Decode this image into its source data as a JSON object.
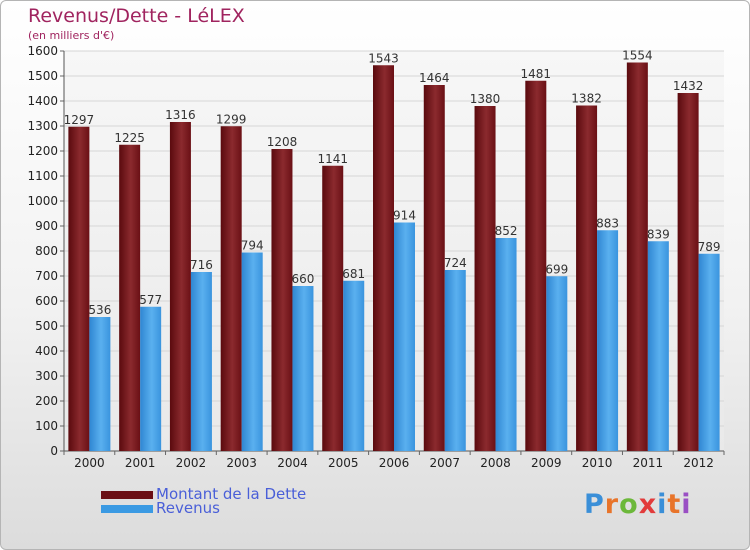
{
  "header": {
    "title": "Revenus/Dette - LéLEX",
    "subtitle": "(en milliers d'€)"
  },
  "legend": {
    "items": [
      {
        "label": "Montant de la Dette",
        "color": "#6b0f14"
      },
      {
        "label": "Revenus",
        "color": "#3b9ae3"
      }
    ]
  },
  "brand": {
    "text": "Proxiti",
    "colors": [
      "#3a8fd8",
      "#e8742a",
      "#6cb83a",
      "#e23b3b",
      "#3a8fd8",
      "#e8742a",
      "#9a4fc4"
    ]
  },
  "chart_data": {
    "type": "bar",
    "title": "Revenus/Dette - LéLEX",
    "subtitle": "(en milliers d'€)",
    "categories": [
      "2000",
      "2001",
      "2002",
      "2003",
      "2004",
      "2005",
      "2006",
      "2007",
      "2008",
      "2009",
      "2010",
      "2011",
      "2012"
    ],
    "series": [
      {
        "name": "Montant de la Dette",
        "color": "#6b0f14",
        "values": [
          1297,
          1225,
          1316,
          1299,
          1208,
          1141,
          1543,
          1464,
          1380,
          1481,
          1382,
          1554,
          1432
        ]
      },
      {
        "name": "Revenus",
        "color": "#3b9ae3",
        "values": [
          536,
          577,
          716,
          794,
          660,
          681,
          914,
          724,
          852,
          699,
          883,
          839,
          789
        ]
      }
    ],
    "ylim": [
      0,
      1600
    ],
    "yticks": [
      0,
      100,
      200,
      300,
      400,
      500,
      600,
      700,
      800,
      900,
      1000,
      1100,
      1200,
      1300,
      1400,
      1500,
      1600
    ],
    "grid": true,
    "legend_position": "bottom-left",
    "data_labels": true
  }
}
